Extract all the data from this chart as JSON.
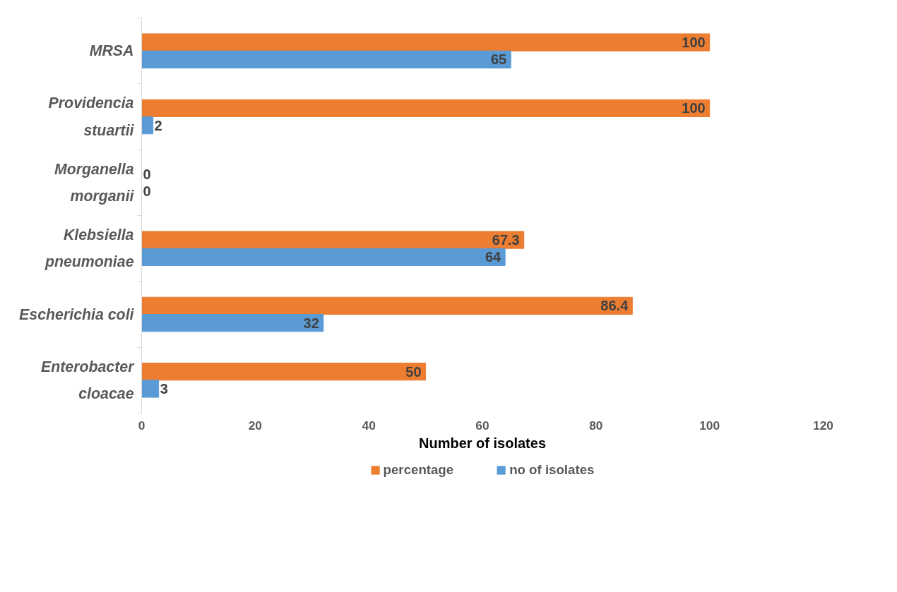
{
  "chart_data": {
    "type": "bar",
    "orientation": "horizontal",
    "xlabel": "Number of isolates",
    "categories": [
      "MRSA",
      "Providencia stuartii",
      "Morganella morganii",
      "Klebsiella pneumoniae",
      "Escherichia coli",
      "Enterobacter cloacae"
    ],
    "series": [
      {
        "name": "percentage",
        "color": "#ed7d31",
        "values": [
          100,
          100,
          0,
          67.3,
          86.4,
          50
        ]
      },
      {
        "name": "no of isolates",
        "color": "#5b9bd5",
        "values": [
          65,
          2,
          0,
          64,
          32,
          3
        ]
      }
    ],
    "xlim": [
      0,
      120
    ],
    "xticks": [
      0,
      20,
      40,
      60,
      80,
      100,
      120
    ],
    "data_labels": true,
    "legend": "bottom",
    "grid": false
  }
}
